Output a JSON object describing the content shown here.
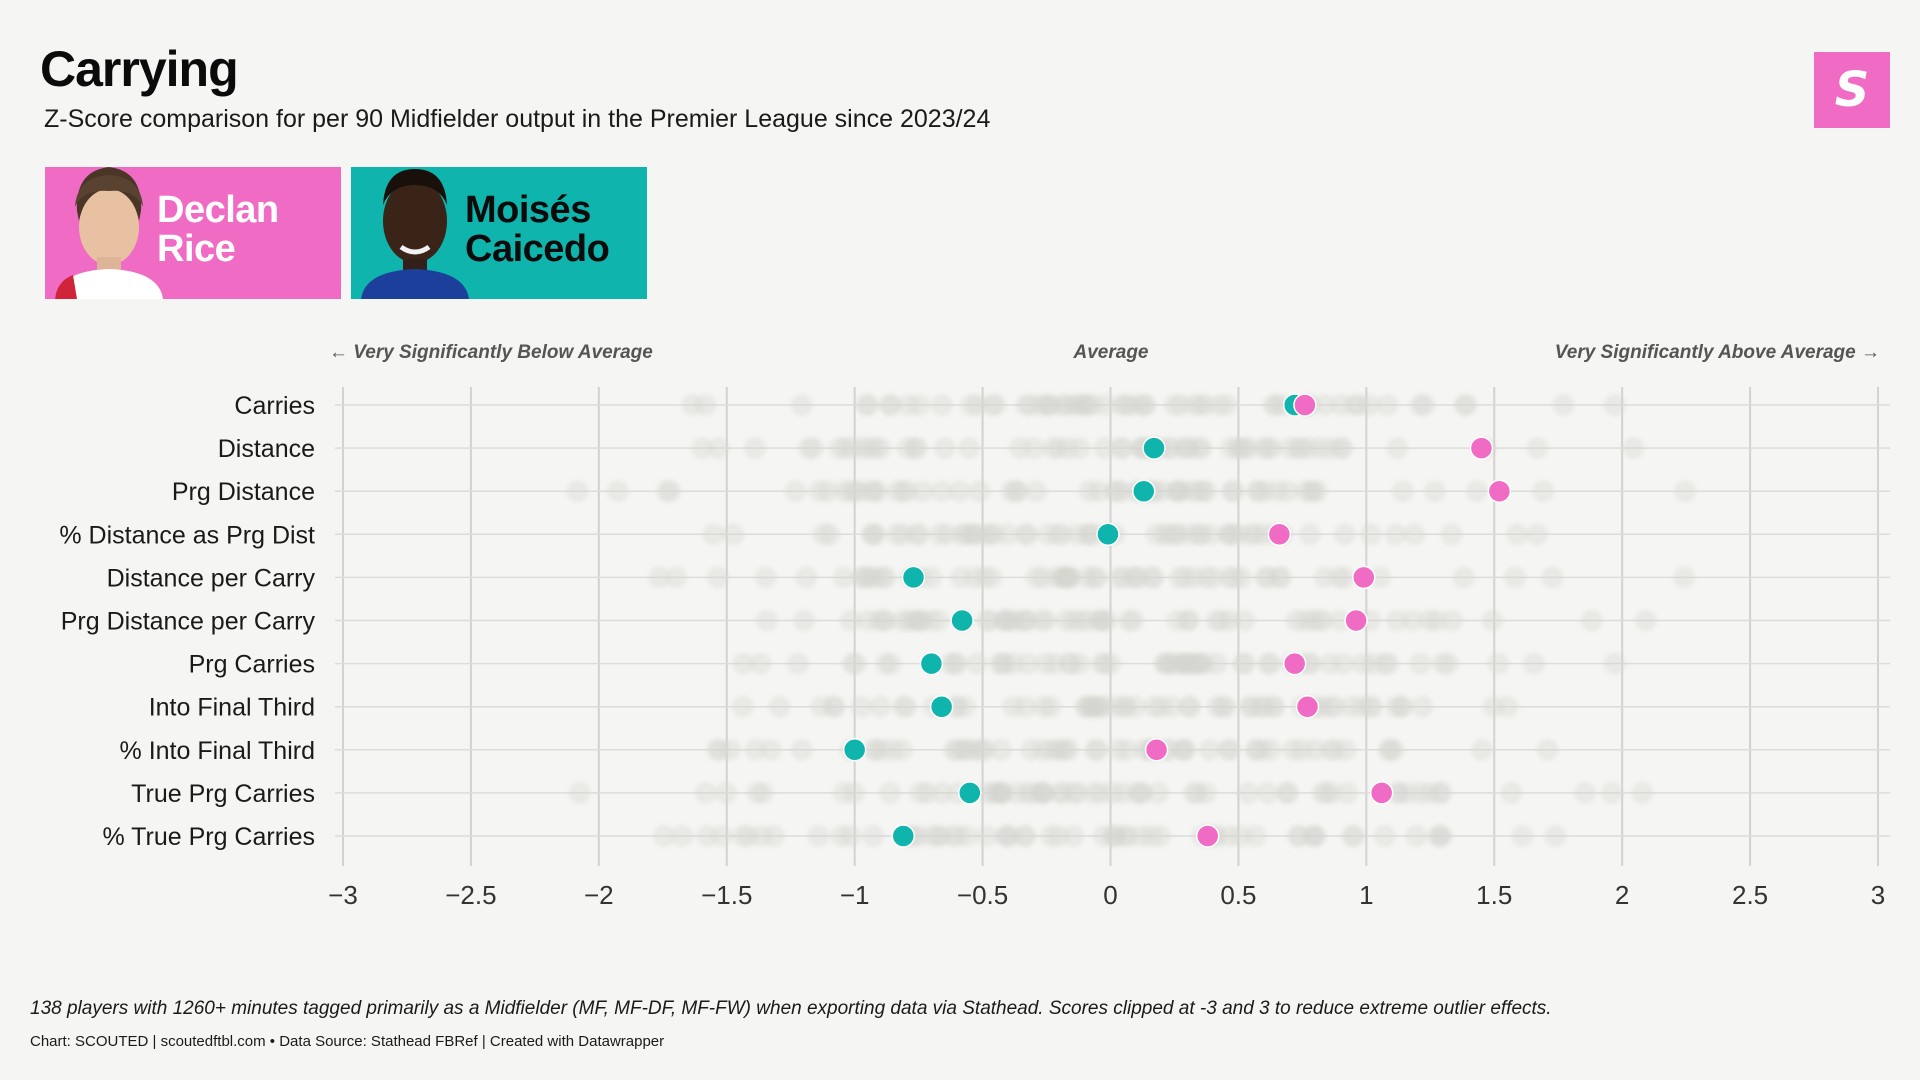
{
  "header": {
    "title": "Carrying",
    "subtitle": "Z-Score comparison for per 90 Midfielder output in the Premier League since 2023/24",
    "logo_text": "S"
  },
  "players": [
    {
      "first": "Declan",
      "last": "Rice",
      "color": "#f06bc4"
    },
    {
      "first": "Moisés",
      "last": "Caicedo",
      "color": "#0fb4ad"
    }
  ],
  "direction_labels": {
    "left": "← Very Significantly Below Average",
    "center": "Average",
    "right": "Very Significantly Above Average →"
  },
  "chart_data": {
    "type": "scatter",
    "xlim": [
      -3,
      3
    ],
    "x_ticks": [
      -3,
      -2.5,
      -2,
      -1.5,
      -1,
      -0.5,
      0,
      0.5,
      1,
      1.5,
      2,
      2.5,
      3
    ],
    "x_tick_labels": [
      "−3",
      "−2.5",
      "−2",
      "−1.5",
      "−1",
      "−0.5",
      "0",
      "0.5",
      "1",
      "1.5",
      "2",
      "2.5",
      "3"
    ],
    "categories": [
      "Carries",
      "Distance",
      "Prg Distance",
      "% Distance as Prg Dist",
      "Distance per Carry",
      "Prg Distance per Carry",
      "Prg Carries",
      "Into Final Third",
      "% Into Final Third",
      "True Prg Carries",
      "% True Prg Carries"
    ],
    "series": [
      {
        "name": "Declan Rice",
        "color": "#f06bc4",
        "values": [
          0.76,
          1.45,
          1.52,
          0.66,
          0.99,
          0.96,
          0.72,
          0.77,
          0.18,
          1.06,
          0.38
        ]
      },
      {
        "name": "Moisés Caicedo",
        "color": "#0fb4ad",
        "values": [
          0.72,
          0.17,
          0.13,
          -0.01,
          -0.77,
          -0.58,
          -0.7,
          -0.66,
          -1.0,
          -0.55,
          -0.81
        ]
      }
    ],
    "background_series": {
      "name": "Other midfielders (138 players)",
      "color": "#d6d6d0"
    }
  },
  "footer": {
    "note": "138 players with 1260+ minutes tagged primarily as a Midfielder (MF, MF-DF, MF-FW) when exporting data via Stathead. Scores clipped at -3 and 3 to reduce extreme outlier effects.",
    "credit": "Chart: SCOUTED | scoutedftbl.com • Data Source: Stathead FBRef | Created with Datawrapper"
  }
}
